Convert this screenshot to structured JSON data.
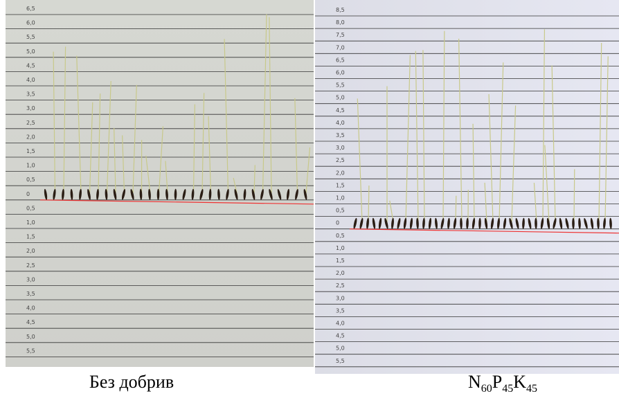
{
  "left_photo": {
    "scale_labels": [
      "6,5",
      "6,0",
      "5,5",
      "5,0",
      "4,5",
      "4,0",
      "3,5",
      "3,0",
      "2,5",
      "2,0",
      "1,5",
      "1,0",
      "0,5",
      "0",
      "0,5",
      "1,0",
      "1,5",
      "2,0",
      "2,5",
      "3,0",
      "3,5",
      "4,0",
      "4,5",
      "5,0",
      "5,5"
    ]
  },
  "right_photo": {
    "scale_labels": [
      "8,5",
      "8,0",
      "7,5",
      "7,0",
      "6,5",
      "6,0",
      "5,5",
      "5,0",
      "4,5",
      "4,0",
      "3,5",
      "3,0",
      "2,5",
      "2,0",
      "1,5",
      "1,0",
      "0,5",
      "0",
      "0,5",
      "1,0",
      "1,5",
      "2,0",
      "2,5",
      "3,0",
      "3,5",
      "4,0",
      "4,5",
      "5,0",
      "5,5"
    ]
  },
  "captions": {
    "left": "Без добрив",
    "right": [
      {
        "text": "N",
        "sub": "60"
      },
      {
        "text": "P",
        "sub": "45"
      },
      {
        "text": "K",
        "sub": "45"
      }
    ]
  }
}
